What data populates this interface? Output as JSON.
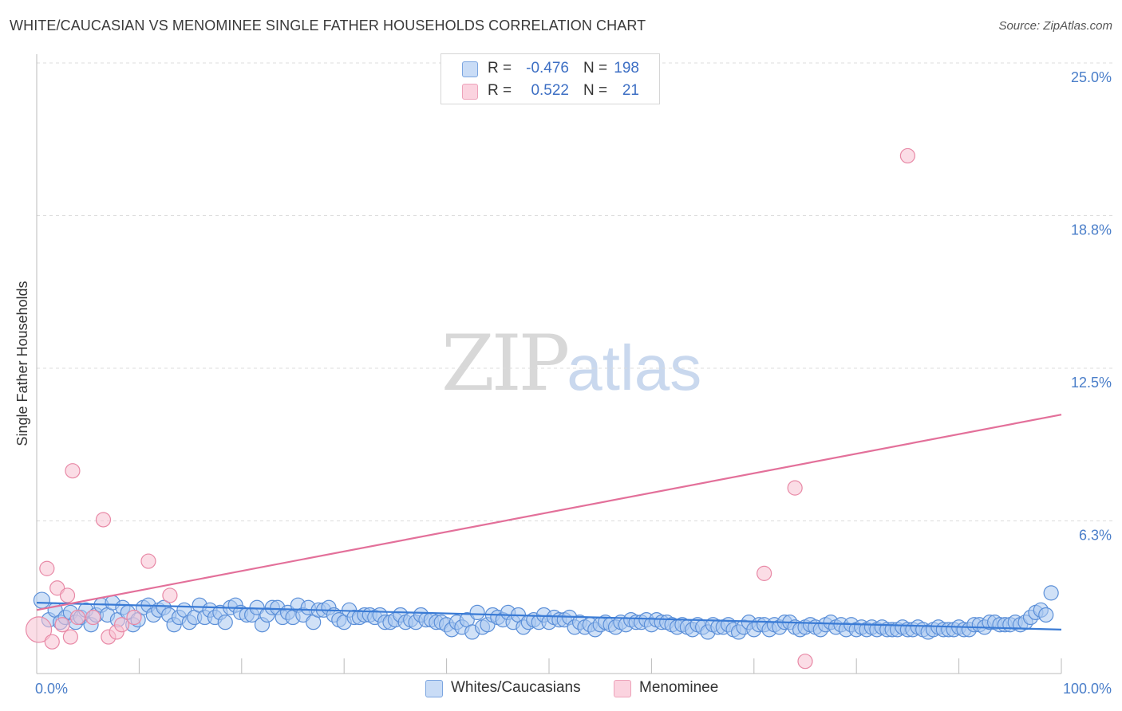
{
  "chart_data": {
    "type": "scatter",
    "title": "WHITE/CAUCASIAN VS MENOMINEE SINGLE FATHER HOUSEHOLDS CORRELATION CHART",
    "source": "Source: ZipAtlas.com",
    "ylabel": "Single Father Households",
    "xlabel": "",
    "xlim": [
      0,
      100
    ],
    "ylim": [
      0,
      25
    ],
    "x_tick_labels": [
      "0.0%",
      "100.0%"
    ],
    "y_ticks": [
      6.25,
      12.5,
      18.75,
      25.0
    ],
    "y_tick_labels": [
      "6.3%",
      "12.5%",
      "18.8%",
      "25.0%"
    ],
    "legend_entries": [
      {
        "name": "Whites/Caucasians",
        "r_label": "R =",
        "r": "-0.476",
        "n_label": "N =",
        "n": "198",
        "color": "#a9c8f0",
        "edge": "#5b8fd8"
      },
      {
        "name": "Menominee",
        "r_label": "R =",
        "r": "0.522",
        "n_label": "N =",
        "n": "21",
        "color": "#f7c1d2",
        "edge": "#e889a6"
      }
    ],
    "series": [
      {
        "name": "Whites/Caucasians",
        "color": "#a9c8f0",
        "edge": "#5b8fd8",
        "line_color": "#3a7bd5",
        "trend": {
          "x": [
            0,
            100
          ],
          "y": [
            2.9,
            1.8
          ]
        },
        "points": [
          [
            0.5,
            3.0
          ],
          [
            1.2,
            2.2
          ],
          [
            1.8,
            2.6
          ],
          [
            2.3,
            2.1
          ],
          [
            2.8,
            2.3
          ],
          [
            3.3,
            2.5
          ],
          [
            3.8,
            2.1
          ],
          [
            4.3,
            2.3
          ],
          [
            4.8,
            2.6
          ],
          [
            5.3,
            2.0
          ],
          [
            5.8,
            2.4
          ],
          [
            6.3,
            2.8
          ],
          [
            6.9,
            2.4
          ],
          [
            7.4,
            2.9
          ],
          [
            7.9,
            2.2
          ],
          [
            8.4,
            2.7
          ],
          [
            8.9,
            2.5
          ],
          [
            9.4,
            2.0
          ],
          [
            9.9,
            2.2
          ],
          [
            10.4,
            2.7
          ],
          [
            10.9,
            2.8
          ],
          [
            11.4,
            2.4
          ],
          [
            11.9,
            2.6
          ],
          [
            12.4,
            2.7
          ],
          [
            12.9,
            2.4
          ],
          [
            13.4,
            2.0
          ],
          [
            13.9,
            2.3
          ],
          [
            14.4,
            2.6
          ],
          [
            14.9,
            2.1
          ],
          [
            15.4,
            2.3
          ],
          [
            15.9,
            2.8
          ],
          [
            16.4,
            2.3
          ],
          [
            16.9,
            2.6
          ],
          [
            17.4,
            2.3
          ],
          [
            17.9,
            2.5
          ],
          [
            18.4,
            2.1
          ],
          [
            18.9,
            2.7
          ],
          [
            19.4,
            2.8
          ],
          [
            19.9,
            2.5
          ],
          [
            20.5,
            2.4
          ],
          [
            21.0,
            2.4
          ],
          [
            21.5,
            2.7
          ],
          [
            22.0,
            2.0
          ],
          [
            22.5,
            2.4
          ],
          [
            23.0,
            2.7
          ],
          [
            23.5,
            2.7
          ],
          [
            24.0,
            2.3
          ],
          [
            24.5,
            2.5
          ],
          [
            25.0,
            2.3
          ],
          [
            25.5,
            2.8
          ],
          [
            26.0,
            2.4
          ],
          [
            26.5,
            2.7
          ],
          [
            27.0,
            2.1
          ],
          [
            27.5,
            2.6
          ],
          [
            28.0,
            2.6
          ],
          [
            28.5,
            2.7
          ],
          [
            29.0,
            2.4
          ],
          [
            29.5,
            2.2
          ],
          [
            30.0,
            2.1
          ],
          [
            30.5,
            2.6
          ],
          [
            31.0,
            2.3
          ],
          [
            31.5,
            2.3
          ],
          [
            32.0,
            2.4
          ],
          [
            32.5,
            2.4
          ],
          [
            33.0,
            2.3
          ],
          [
            33.5,
            2.4
          ],
          [
            34.0,
            2.1
          ],
          [
            34.5,
            2.1
          ],
          [
            35.0,
            2.2
          ],
          [
            35.5,
            2.4
          ],
          [
            36.0,
            2.1
          ],
          [
            36.5,
            2.2
          ],
          [
            37.0,
            2.1
          ],
          [
            37.5,
            2.4
          ],
          [
            38.0,
            2.2
          ],
          [
            38.5,
            2.2
          ],
          [
            39.0,
            2.1
          ],
          [
            39.5,
            2.1
          ],
          [
            40.0,
            2.0
          ],
          [
            40.5,
            1.8
          ],
          [
            41.0,
            2.1
          ],
          [
            41.5,
            1.9
          ],
          [
            42.0,
            2.2
          ],
          [
            42.5,
            1.7
          ],
          [
            43.0,
            2.5
          ],
          [
            43.5,
            1.9
          ],
          [
            44.0,
            2.0
          ],
          [
            44.5,
            2.4
          ],
          [
            45.0,
            2.3
          ],
          [
            45.5,
            2.2
          ],
          [
            46.0,
            2.5
          ],
          [
            46.5,
            2.1
          ],
          [
            47.0,
            2.4
          ],
          [
            47.5,
            1.9
          ],
          [
            48.0,
            2.1
          ],
          [
            48.5,
            2.2
          ],
          [
            49.0,
            2.1
          ],
          [
            49.5,
            2.4
          ],
          [
            50.0,
            2.1
          ],
          [
            50.5,
            2.3
          ],
          [
            51.0,
            2.2
          ],
          [
            51.5,
            2.2
          ],
          [
            52.0,
            2.3
          ],
          [
            52.5,
            1.9
          ],
          [
            53.0,
            2.1
          ],
          [
            53.5,
            1.9
          ],
          [
            54.0,
            2.0
          ],
          [
            54.5,
            1.8
          ],
          [
            55.0,
            2.0
          ],
          [
            55.5,
            2.1
          ],
          [
            56.0,
            2.0
          ],
          [
            56.5,
            1.9
          ],
          [
            57.0,
            2.1
          ],
          [
            57.5,
            2.0
          ],
          [
            58.0,
            2.2
          ],
          [
            58.5,
            2.1
          ],
          [
            59.0,
            2.1
          ],
          [
            59.5,
            2.2
          ],
          [
            60.0,
            2.0
          ],
          [
            60.5,
            2.2
          ],
          [
            61.0,
            2.1
          ],
          [
            61.5,
            2.1
          ],
          [
            62.0,
            2.0
          ],
          [
            62.5,
            1.9
          ],
          [
            63.0,
            2.0
          ],
          [
            63.5,
            1.9
          ],
          [
            64.0,
            1.8
          ],
          [
            64.5,
            2.0
          ],
          [
            65.0,
            1.9
          ],
          [
            65.5,
            1.7
          ],
          [
            66.0,
            2.0
          ],
          [
            66.5,
            1.9
          ],
          [
            67.0,
            1.9
          ],
          [
            67.5,
            2.0
          ],
          [
            68.0,
            1.8
          ],
          [
            68.5,
            1.7
          ],
          [
            69.0,
            1.9
          ],
          [
            69.5,
            2.1
          ],
          [
            70.0,
            1.8
          ],
          [
            70.5,
            2.0
          ],
          [
            71.0,
            2.0
          ],
          [
            71.5,
            1.8
          ],
          [
            72.0,
            2.0
          ],
          [
            72.5,
            1.9
          ],
          [
            73.0,
            2.1
          ],
          [
            73.5,
            2.1
          ],
          [
            74.0,
            1.9
          ],
          [
            74.5,
            1.8
          ],
          [
            75.0,
            1.9
          ],
          [
            75.5,
            2.0
          ],
          [
            76.0,
            1.9
          ],
          [
            76.5,
            1.8
          ],
          [
            77.0,
            2.0
          ],
          [
            77.5,
            2.1
          ],
          [
            78.0,
            1.9
          ],
          [
            78.5,
            2.0
          ],
          [
            79.0,
            1.8
          ],
          [
            79.5,
            2.0
          ],
          [
            80.0,
            1.8
          ],
          [
            80.5,
            1.9
          ],
          [
            81.0,
            1.8
          ],
          [
            81.5,
            1.9
          ],
          [
            82.0,
            1.8
          ],
          [
            82.5,
            1.9
          ],
          [
            83.0,
            1.8
          ],
          [
            83.5,
            1.8
          ],
          [
            84.0,
            1.8
          ],
          [
            84.5,
            1.9
          ],
          [
            85.0,
            1.8
          ],
          [
            85.5,
            1.8
          ],
          [
            86.0,
            1.9
          ],
          [
            86.5,
            1.8
          ],
          [
            87.0,
            1.7
          ],
          [
            87.5,
            1.8
          ],
          [
            88.0,
            1.9
          ],
          [
            88.5,
            1.8
          ],
          [
            89.0,
            1.8
          ],
          [
            89.5,
            1.8
          ],
          [
            90.0,
            1.9
          ],
          [
            90.5,
            1.8
          ],
          [
            91.0,
            1.8
          ],
          [
            91.5,
            2.0
          ],
          [
            92.0,
            2.0
          ],
          [
            92.5,
            1.9
          ],
          [
            93.0,
            2.1
          ],
          [
            93.5,
            2.1
          ],
          [
            94.0,
            2.0
          ],
          [
            94.5,
            2.0
          ],
          [
            95.0,
            2.0
          ],
          [
            95.5,
            2.1
          ],
          [
            96.0,
            2.0
          ],
          [
            96.5,
            2.1
          ],
          [
            97.0,
            2.3
          ],
          [
            97.5,
            2.5
          ],
          [
            98.0,
            2.6
          ],
          [
            98.5,
            2.4
          ],
          [
            99.0,
            3.3
          ]
        ]
      },
      {
        "name": "Menominee",
        "color": "#f7c1d2",
        "edge": "#e889a6",
        "line_color": "#e3709a",
        "trend": {
          "x": [
            0,
            100
          ],
          "y": [
            2.6,
            10.6
          ]
        },
        "points": [
          [
            0.2,
            1.8
          ],
          [
            1.0,
            4.3
          ],
          [
            1.5,
            1.3
          ],
          [
            2.0,
            3.5
          ],
          [
            2.5,
            2.0
          ],
          [
            3.0,
            3.2
          ],
          [
            3.3,
            1.5
          ],
          [
            3.5,
            8.3
          ],
          [
            4.0,
            2.3
          ],
          [
            5.5,
            2.3
          ],
          [
            6.5,
            6.3
          ],
          [
            7.0,
            1.5
          ],
          [
            7.8,
            1.7
          ],
          [
            8.3,
            2.0
          ],
          [
            9.5,
            2.3
          ],
          [
            10.9,
            4.6
          ],
          [
            13.0,
            3.2
          ],
          [
            71.0,
            4.1
          ],
          [
            74.0,
            7.6
          ],
          [
            75.0,
            0.5
          ],
          [
            85.0,
            21.2
          ]
        ]
      }
    ]
  }
}
